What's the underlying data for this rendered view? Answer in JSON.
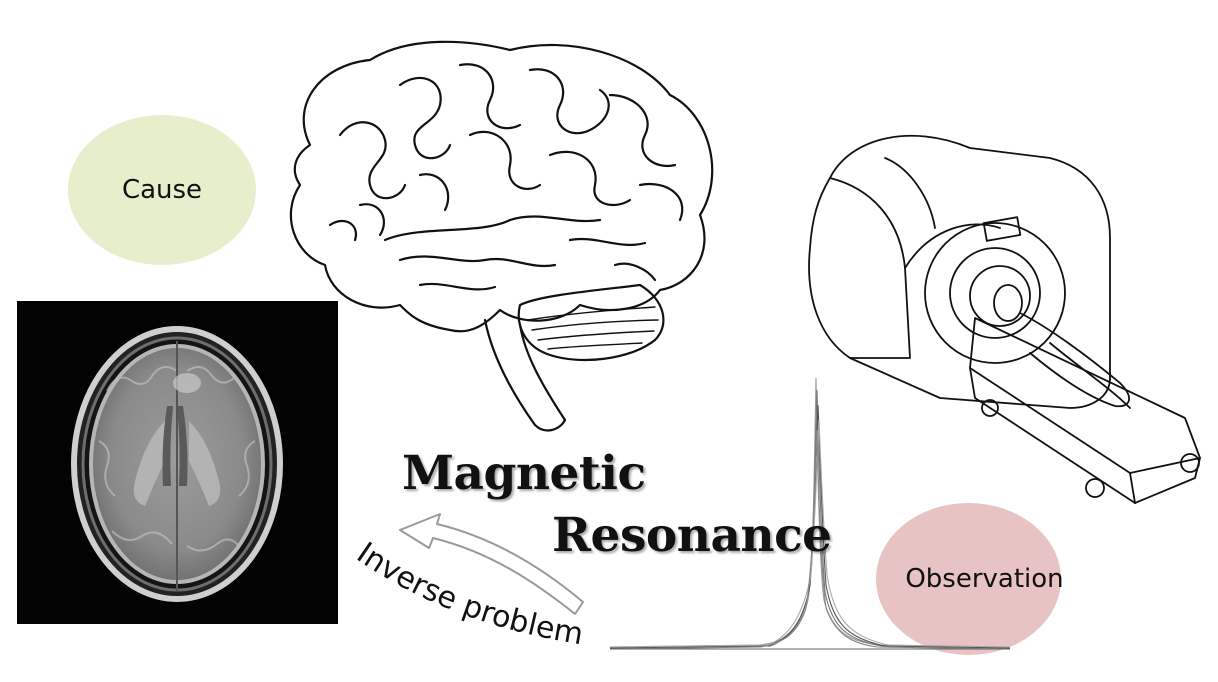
{
  "labels": {
    "cause": "Cause",
    "observation": "Observation",
    "title_line_1": "Magnetic",
    "title_line_2": "Resonance",
    "inverse_problem": "Inverse problem"
  },
  "colors": {
    "cause_fill": "#e6eecb",
    "observation_fill": "#e7c3c3",
    "line": "#222222",
    "arrow_stroke": "#9a9a9a"
  },
  "icons": {
    "brain": "brain-drawing",
    "scanner": "mri-scanner-drawing",
    "scan": "axial-brain-mri-image",
    "signal": "mr-signal-peak",
    "arrow": "curved-arrow"
  }
}
